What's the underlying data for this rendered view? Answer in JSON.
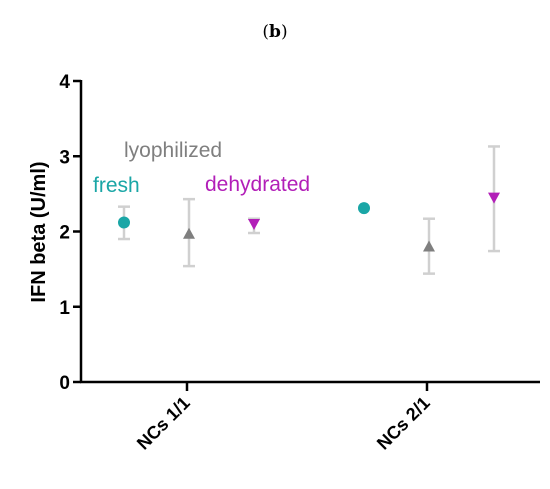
{
  "panel_label_open": "(",
  "panel_label_letter": "b",
  "panel_label_close": ")",
  "chart_data": {
    "type": "scatter",
    "ylabel": "IFN beta (U/ml)",
    "xlabel": "",
    "ylim": [
      0,
      4
    ],
    "yticks": [
      "0",
      "1",
      "2",
      "3",
      "4"
    ],
    "categories": [
      "NCs 1/1",
      "NCs 2/1"
    ],
    "grid": false,
    "series": [
      {
        "name": "fresh",
        "marker": "circle",
        "color": "#1aa6a6",
        "values": [
          2.12,
          2.31
        ],
        "error_low": [
          1.9,
          null
        ],
        "error_high": [
          2.33,
          null
        ]
      },
      {
        "name": "lyophilized",
        "marker": "triangle-up",
        "color": "#7f7f7f",
        "values": [
          1.97,
          1.8
        ],
        "error_low": [
          1.54,
          1.44
        ],
        "error_high": [
          2.43,
          2.17
        ]
      },
      {
        "name": "dehydrated",
        "marker": "triangle-down",
        "color": "#b21fb8",
        "values": [
          2.1,
          2.45
        ],
        "error_low": [
          1.98,
          1.74
        ],
        "error_high": [
          2.17,
          3.13
        ]
      }
    ],
    "errorbar_color": "#d0d0d0"
  }
}
